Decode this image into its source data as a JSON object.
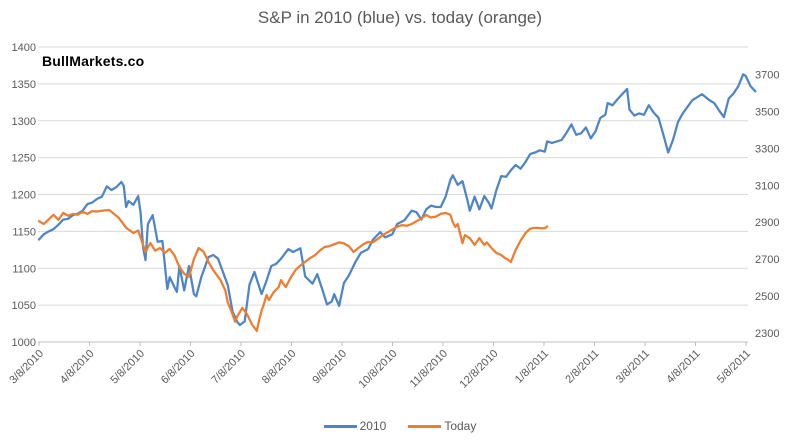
{
  "title": "S&P in 2010 (blue) vs. today (orange)",
  "watermark": "BullMarkets.co",
  "chart_data": {
    "type": "line",
    "title": "S&P in 2010 (blue) vs. today (orange)",
    "grid": true,
    "legend_position": "bottom",
    "x_tick_labels": [
      "3/8/2010",
      "4/8/2010",
      "5/8/2010",
      "6/8/2010",
      "7/8/2010",
      "8/8/2010",
      "9/8/2010",
      "10/8/2010",
      "11/8/2010",
      "12/8/2010",
      "1/8/2011",
      "2/8/2011",
      "3/8/2011",
      "4/8/2011",
      "5/8/2011"
    ],
    "left_axis": {
      "min": 1000,
      "max": 1400,
      "ticks": [
        1400,
        1350,
        1300,
        1250,
        1200,
        1150,
        1100,
        1050,
        1000
      ]
    },
    "right_axis": {
      "min": 2250,
      "max": 3850,
      "ticks": [
        3700,
        3500,
        3300,
        3100,
        2900,
        2700,
        2500,
        2300
      ]
    },
    "colors": {
      "grid": "#d9d9d9",
      "axis_line": "#bfbfbf",
      "tick_text": "#595959"
    },
    "series": [
      {
        "name": "2010",
        "axis": "left",
        "color": "#4d85c6",
        "points": [
          [
            0,
            1139
          ],
          [
            2,
            1146
          ],
          [
            4,
            1150
          ],
          [
            6,
            1153
          ],
          [
            8,
            1159
          ],
          [
            10,
            1166
          ],
          [
            12,
            1167
          ],
          [
            14,
            1172
          ],
          [
            16,
            1174
          ],
          [
            18,
            1178
          ],
          [
            20,
            1187
          ],
          [
            22,
            1189
          ],
          [
            24,
            1194
          ],
          [
            26,
            1197
          ],
          [
            28,
            1211
          ],
          [
            30,
            1206
          ],
          [
            32,
            1210
          ],
          [
            34,
            1217
          ],
          [
            35,
            1212
          ],
          [
            36,
            1183
          ],
          [
            37,
            1191
          ],
          [
            39,
            1186
          ],
          [
            41,
            1198
          ],
          [
            42,
            1175
          ],
          [
            43,
            1128
          ],
          [
            44,
            1111
          ],
          [
            45,
            1160
          ],
          [
            47,
            1172
          ],
          [
            49,
            1136
          ],
          [
            51,
            1137
          ],
          [
            53,
            1072
          ],
          [
            54,
            1088
          ],
          [
            56,
            1074
          ],
          [
            57,
            1068
          ],
          [
            58,
            1103
          ],
          [
            60,
            1070
          ],
          [
            62,
            1103
          ],
          [
            64,
            1065
          ],
          [
            65,
            1062
          ],
          [
            67,
            1087
          ],
          [
            70,
            1115
          ],
          [
            72,
            1118
          ],
          [
            74,
            1113
          ],
          [
            76,
            1095
          ],
          [
            78,
            1077
          ],
          [
            80,
            1041
          ],
          [
            82,
            1027
          ],
          [
            83,
            1023
          ],
          [
            85,
            1028
          ],
          [
            87,
            1078
          ],
          [
            89,
            1095
          ],
          [
            92,
            1065
          ],
          [
            94,
            1083
          ],
          [
            96,
            1103
          ],
          [
            98,
            1106
          ],
          [
            100,
            1113
          ],
          [
            103,
            1126
          ],
          [
            105,
            1122
          ],
          [
            108,
            1127
          ],
          [
            110,
            1089
          ],
          [
            113,
            1079
          ],
          [
            115,
            1092
          ],
          [
            117,
            1072
          ],
          [
            119,
            1051
          ],
          [
            121,
            1055
          ],
          [
            122,
            1065
          ],
          [
            124,
            1049
          ],
          [
            126,
            1080
          ],
          [
            128,
            1090
          ],
          [
            131,
            1110
          ],
          [
            133,
            1121
          ],
          [
            136,
            1126
          ],
          [
            138,
            1139
          ],
          [
            141,
            1149
          ],
          [
            143,
            1142
          ],
          [
            146,
            1146
          ],
          [
            148,
            1160
          ],
          [
            151,
            1165
          ],
          [
            154,
            1178
          ],
          [
            156,
            1176
          ],
          [
            158,
            1166
          ],
          [
            160,
            1180
          ],
          [
            162,
            1185
          ],
          [
            164,
            1183
          ],
          [
            166,
            1183
          ],
          [
            168,
            1197
          ],
          [
            170,
            1220
          ],
          [
            171,
            1226
          ],
          [
            173,
            1213
          ],
          [
            175,
            1218
          ],
          [
            177,
            1193
          ],
          [
            178,
            1178
          ],
          [
            180,
            1197
          ],
          [
            182,
            1180
          ],
          [
            184,
            1198
          ],
          [
            186,
            1188
          ],
          [
            187,
            1181
          ],
          [
            189,
            1206
          ],
          [
            191,
            1225
          ],
          [
            193,
            1224
          ],
          [
            195,
            1233
          ],
          [
            197,
            1240
          ],
          [
            199,
            1235
          ],
          [
            201,
            1244
          ],
          [
            203,
            1255
          ],
          [
            205,
            1257
          ],
          [
            207,
            1260
          ],
          [
            209,
            1258
          ],
          [
            210,
            1272
          ],
          [
            212,
            1270
          ],
          [
            214,
            1272
          ],
          [
            216,
            1274
          ],
          [
            218,
            1284
          ],
          [
            220,
            1295
          ],
          [
            222,
            1281
          ],
          [
            224,
            1283
          ],
          [
            226,
            1291
          ],
          [
            228,
            1276
          ],
          [
            230,
            1286
          ],
          [
            232,
            1304
          ],
          [
            234,
            1308
          ],
          [
            235,
            1324
          ],
          [
            237,
            1321
          ],
          [
            239,
            1329
          ],
          [
            241,
            1336
          ],
          [
            243,
            1343
          ],
          [
            244,
            1315
          ],
          [
            246,
            1307
          ],
          [
            248,
            1310
          ],
          [
            250,
            1308
          ],
          [
            252,
            1321
          ],
          [
            254,
            1311
          ],
          [
            256,
            1304
          ],
          [
            258,
            1281
          ],
          [
            260,
            1257
          ],
          [
            262,
            1274
          ],
          [
            264,
            1298
          ],
          [
            266,
            1310
          ],
          [
            268,
            1319
          ],
          [
            270,
            1328
          ],
          [
            272,
            1332
          ],
          [
            274,
            1336
          ],
          [
            277,
            1328
          ],
          [
            279,
            1324
          ],
          [
            281,
            1314
          ],
          [
            283,
            1305
          ],
          [
            285,
            1330
          ],
          [
            287,
            1337
          ],
          [
            289,
            1347
          ],
          [
            291,
            1363
          ],
          [
            292,
            1361
          ],
          [
            294,
            1347
          ],
          [
            296,
            1340
          ]
        ]
      },
      {
        "name": "Today",
        "axis": "right",
        "color": "#ed7d31",
        "points": [
          [
            0,
            2905
          ],
          [
            2,
            2890
          ],
          [
            4,
            2915
          ],
          [
            6,
            2940
          ],
          [
            8,
            2912
          ],
          [
            10,
            2950
          ],
          [
            12,
            2935
          ],
          [
            14,
            2945
          ],
          [
            16,
            2940
          ],
          [
            18,
            2956
          ],
          [
            20,
            2945
          ],
          [
            22,
            2960
          ],
          [
            24,
            2958
          ],
          [
            26,
            2962
          ],
          [
            29,
            2966
          ],
          [
            31,
            2945
          ],
          [
            33,
            2923
          ],
          [
            36,
            2870
          ],
          [
            39,
            2841
          ],
          [
            41,
            2855
          ],
          [
            44,
            2738
          ],
          [
            46,
            2787
          ],
          [
            48,
            2745
          ],
          [
            50,
            2760
          ],
          [
            52,
            2733
          ],
          [
            54,
            2755
          ],
          [
            56,
            2720
          ],
          [
            58,
            2657
          ],
          [
            60,
            2620
          ],
          [
            62,
            2603
          ],
          [
            64,
            2700
          ],
          [
            66,
            2760
          ],
          [
            68,
            2740
          ],
          [
            70,
            2685
          ],
          [
            72,
            2640
          ],
          [
            75,
            2586
          ],
          [
            77,
            2530
          ],
          [
            78,
            2465
          ],
          [
            80,
            2400
          ],
          [
            81,
            2360
          ],
          [
            82,
            2390
          ],
          [
            84,
            2435
          ],
          [
            86,
            2400
          ],
          [
            88,
            2345
          ],
          [
            90,
            2310
          ],
          [
            91,
            2370
          ],
          [
            92,
            2420
          ],
          [
            93,
            2460
          ],
          [
            94,
            2505
          ],
          [
            95,
            2478
          ],
          [
            97,
            2520
          ],
          [
            99,
            2548
          ],
          [
            100,
            2586
          ],
          [
            102,
            2548
          ],
          [
            104,
            2600
          ],
          [
            106,
            2640
          ],
          [
            108,
            2665
          ],
          [
            110,
            2685
          ],
          [
            112,
            2705
          ],
          [
            114,
            2720
          ],
          [
            116,
            2745
          ],
          [
            118,
            2765
          ],
          [
            120,
            2770
          ],
          [
            122,
            2780
          ],
          [
            124,
            2790
          ],
          [
            126,
            2785
          ],
          [
            128,
            2770
          ],
          [
            130,
            2738
          ],
          [
            132,
            2760
          ],
          [
            134,
            2780
          ],
          [
            136,
            2793
          ],
          [
            138,
            2790
          ],
          [
            140,
            2810
          ],
          [
            142,
            2830
          ],
          [
            144,
            2845
          ],
          [
            146,
            2860
          ],
          [
            148,
            2875
          ],
          [
            150,
            2884
          ],
          [
            152,
            2880
          ],
          [
            154,
            2890
          ],
          [
            156,
            2905
          ],
          [
            158,
            2920
          ],
          [
            160,
            2939
          ],
          [
            162,
            2925
          ],
          [
            164,
            2930
          ],
          [
            166,
            2945
          ],
          [
            168,
            2950
          ],
          [
            170,
            2940
          ],
          [
            171,
            2900
          ],
          [
            172,
            2874
          ],
          [
            173,
            2890
          ],
          [
            175,
            2786
          ],
          [
            176,
            2830
          ],
          [
            178,
            2813
          ],
          [
            180,
            2776
          ],
          [
            182,
            2814
          ],
          [
            184,
            2776
          ],
          [
            185,
            2790
          ],
          [
            187,
            2760
          ],
          [
            189,
            2733
          ],
          [
            191,
            2722
          ],
          [
            192,
            2711
          ],
          [
            194,
            2694
          ],
          [
            195,
            2684
          ],
          [
            197,
            2750
          ],
          [
            199,
            2800
          ],
          [
            201,
            2840
          ],
          [
            203,
            2865
          ],
          [
            205,
            2870
          ],
          [
            207,
            2868
          ],
          [
            209,
            2866
          ],
          [
            210,
            2877
          ]
        ]
      }
    ]
  },
  "legend": {
    "items": [
      {
        "label": "2010"
      },
      {
        "label": "Today"
      }
    ]
  }
}
